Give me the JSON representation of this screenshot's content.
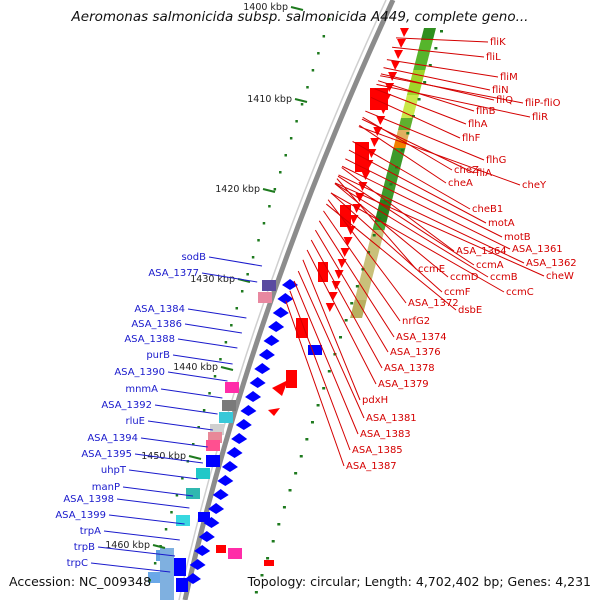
{
  "title": "Aeromonas salmonicida subsp. salmonicida A449, complete geno...",
  "accession": "Accession: NC_009348",
  "topology": "Topology: circular; Length: 4,702,402 bp; Genes: 4,231",
  "ruler": [
    {
      "label": "1400 kbp"
    },
    {
      "label": "1410 kbp"
    },
    {
      "label": "1420 kbp"
    },
    {
      "label": "1430 kbp"
    },
    {
      "label": "1440 kbp"
    },
    {
      "label": "1450 kbp"
    },
    {
      "label": "1460 kbp"
    }
  ],
  "right_labels": [
    "fliK",
    "fliL",
    "fliM",
    "fliN",
    "fliP-fliO",
    "fliQ",
    "fliR",
    "flhB",
    "flhA",
    "flhF",
    "flhG",
    "fliA",
    "cheZ",
    "cheY",
    "cheA",
    "cheB1",
    "motA",
    "motB",
    "ASA_1361",
    "ASA_1364",
    "ASA_1362",
    "ccmA",
    "cheW",
    "ccmE",
    "ccmD",
    "ccmB",
    "ccmC",
    "ccmF",
    "ASA_1372",
    "dsbE",
    "nrfG2",
    "ASA_1374",
    "ASA_1376",
    "ASA_1378",
    "ASA_1379",
    "pdxH",
    "ASA_1381",
    "ASA_1383",
    "ASA_1385",
    "ASA_1387"
  ],
  "left_labels": [
    "sodB",
    "ASA_1377",
    "ASA_1384",
    "ASA_1386",
    "ASA_1388",
    "purB",
    "ASA_1390",
    "mnmA",
    "ASA_1392",
    "rluE",
    "ASA_1394",
    "ASA_1395",
    "uhpT",
    "manP",
    "ASA_1398",
    "ASA_1399",
    "trpA",
    "trpB",
    "trpC"
  ],
  "colors": {
    "forward": "#ff0000",
    "reverse": "#0000ff",
    "backbone": "#8c8c8c",
    "tick": "#1e7a1e",
    "right_label": "#d40000",
    "left_label": "#1a1acc"
  }
}
